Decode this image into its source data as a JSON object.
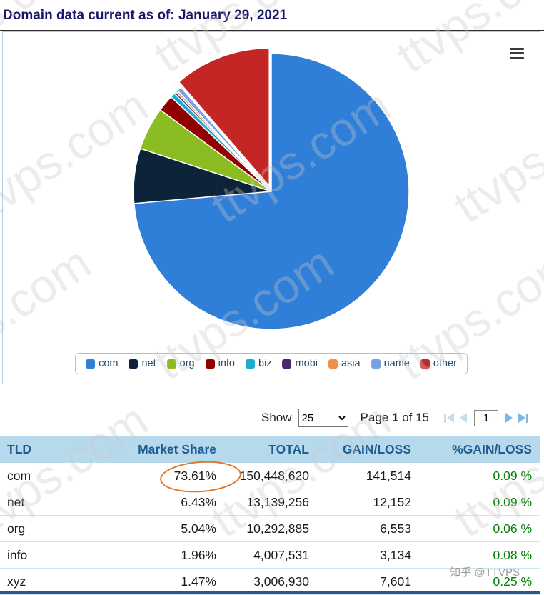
{
  "page": {
    "title": "Domain data current as of: January 29, 2021",
    "watermark_text": "ttvps.com",
    "credit": "知乎 @TTVPS"
  },
  "chart_data": {
    "type": "pie",
    "legend_position": "bottom",
    "direction": "clockwise",
    "start_angle_deg": 0,
    "series": [
      {
        "name": "com",
        "value": 73.61,
        "color": "#2f7ed8",
        "sliced": false
      },
      {
        "name": "net",
        "value": 6.43,
        "color": "#0d233a",
        "sliced": false
      },
      {
        "name": "org",
        "value": 5.04,
        "color": "#8bbc21",
        "sliced": false
      },
      {
        "name": "info",
        "value": 1.96,
        "color": "#910000",
        "sliced": false
      },
      {
        "name": "biz",
        "value": 0.55,
        "color": "#1aadce",
        "sliced": false
      },
      {
        "name": "mobi",
        "value": 0.25,
        "color": "#492970",
        "sliced": false
      },
      {
        "name": "asia",
        "value": 0.25,
        "color": "#f28f43",
        "sliced": false
      },
      {
        "name": "name",
        "value": 0.54,
        "color": "#77a1e5",
        "sliced": false
      },
      {
        "name": "other",
        "value": 11.37,
        "color": "#c42525",
        "sliced": true
      }
    ]
  },
  "controls": {
    "show_label": "Show",
    "show_value": "25",
    "page_label": "Page",
    "page_current": "1",
    "page_of": "of 15",
    "page_input_value": "1"
  },
  "table": {
    "headers": [
      "TLD",
      "Market Share",
      "TOTAL",
      "GAIN/LOSS",
      "%GAIN/LOSS"
    ],
    "positive_color": "#008000",
    "rows": [
      {
        "tld": "com",
        "market_share": "73.61%",
        "total": "150,448,620",
        "gain_loss": "141,514",
        "pct_gain_loss": "0.09 %"
      },
      {
        "tld": "net",
        "market_share": "6.43%",
        "total": "13,139,256",
        "gain_loss": "12,152",
        "pct_gain_loss": "0.09 %"
      },
      {
        "tld": "org",
        "market_share": "5.04%",
        "total": "10,292,885",
        "gain_loss": "6,553",
        "pct_gain_loss": "0.06 %"
      },
      {
        "tld": "info",
        "market_share": "1.96%",
        "total": "4,007,531",
        "gain_loss": "3,134",
        "pct_gain_loss": "0.08 %"
      },
      {
        "tld": "xyz",
        "market_share": "1.47%",
        "total": "3,006,930",
        "gain_loss": "7,601",
        "pct_gain_loss": "0.25 %"
      }
    ]
  },
  "annotation": {
    "circled_value": "73.61%",
    "color": "#e0782a"
  }
}
